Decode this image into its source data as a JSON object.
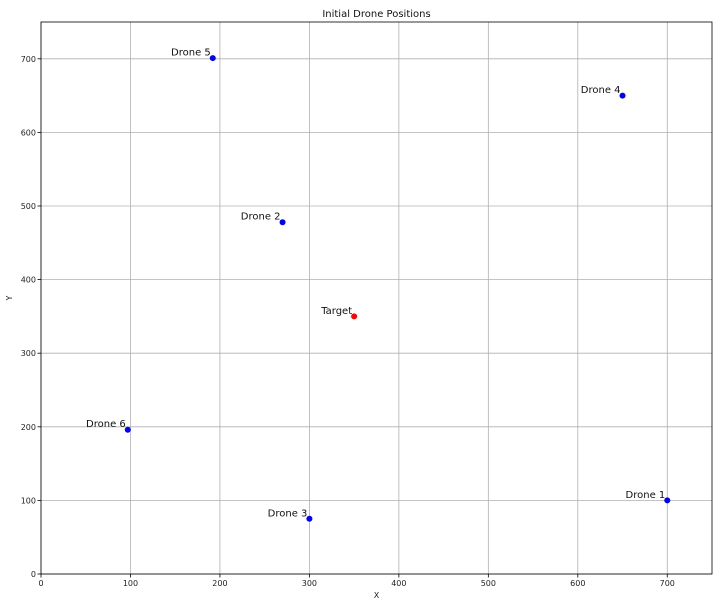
{
  "chart_data": {
    "type": "scatter",
    "title": "Initial Drone Positions",
    "xlabel": "X",
    "ylabel": "Y",
    "xlim": [
      0,
      750
    ],
    "ylim": [
      0,
      750
    ],
    "xticks": [
      0,
      100,
      200,
      300,
      400,
      500,
      600,
      700
    ],
    "yticks": [
      0,
      100,
      200,
      300,
      400,
      500,
      600,
      700
    ],
    "grid": true,
    "points": [
      {
        "label": "Drone 1",
        "x": 700,
        "y": 100,
        "color": "#0000ff"
      },
      {
        "label": "Drone 2",
        "x": 270,
        "y": 478,
        "color": "#0000ff"
      },
      {
        "label": "Drone 3",
        "x": 300,
        "y": 75,
        "color": "#0000ff"
      },
      {
        "label": "Drone 4",
        "x": 650,
        "y": 650,
        "color": "#0000ff"
      },
      {
        "label": "Drone 5",
        "x": 192,
        "y": 701,
        "color": "#0000ff"
      },
      {
        "label": "Drone 6",
        "x": 97,
        "y": 196,
        "color": "#0000ff"
      },
      {
        "label": "Target",
        "x": 350,
        "y": 350,
        "color": "#ff0000"
      }
    ]
  }
}
